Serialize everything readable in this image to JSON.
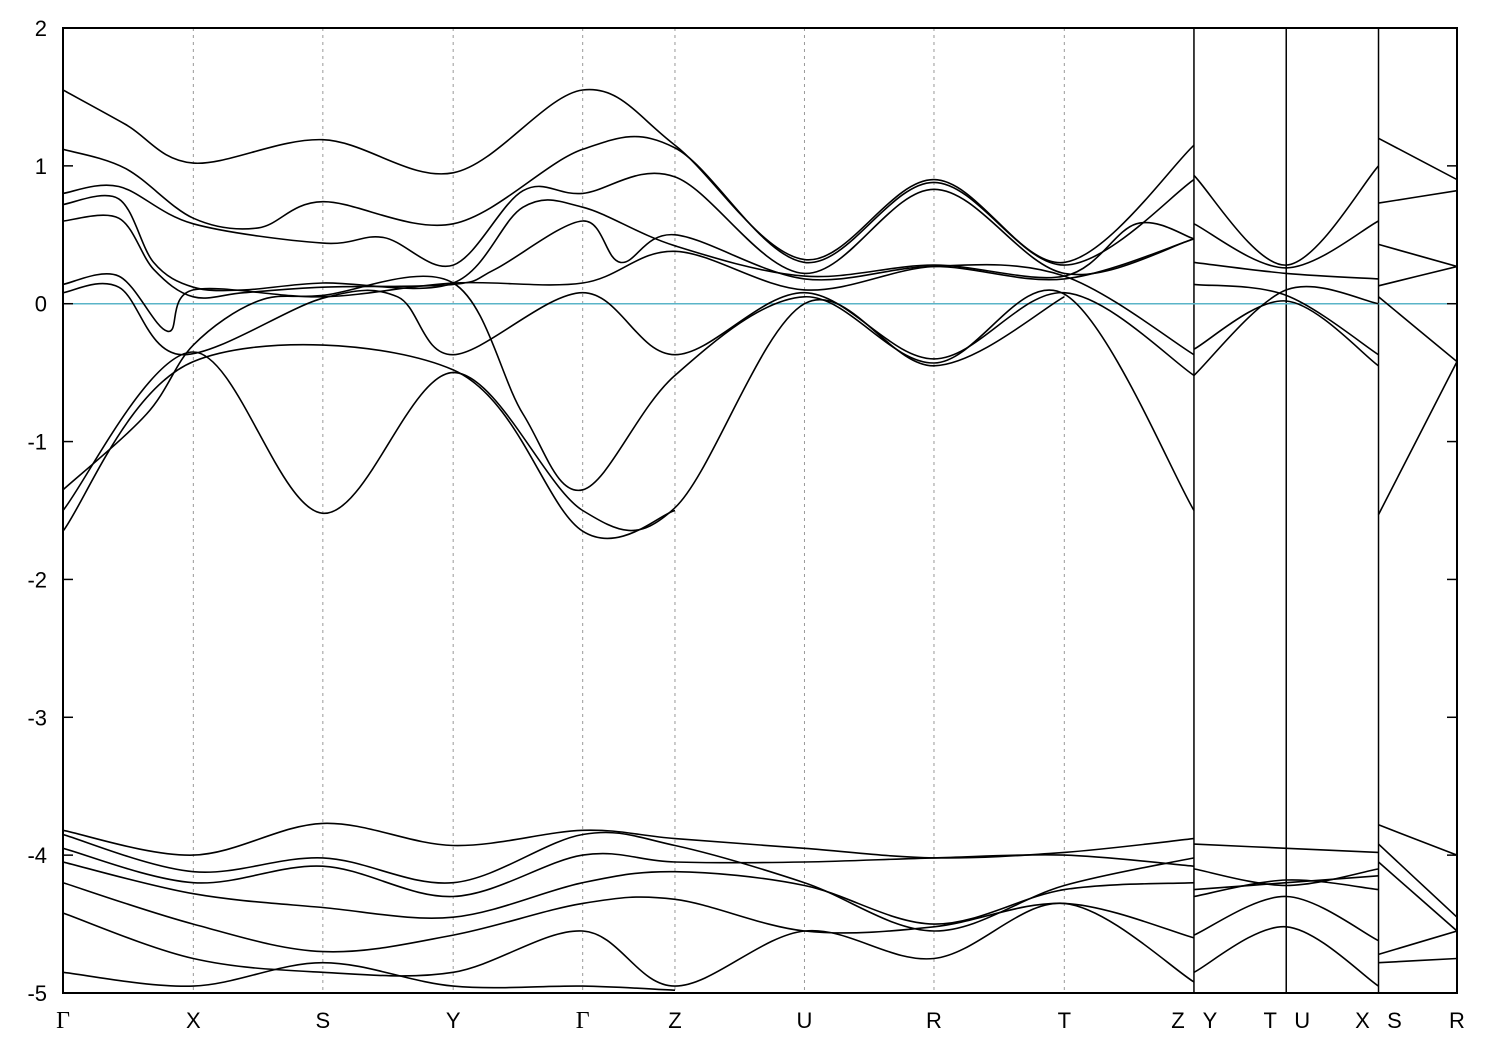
{
  "chart_data": {
    "type": "line",
    "title": "",
    "xlabel": "",
    "ylabel": "",
    "ylim": [
      -5,
      2
    ],
    "yticks": [
      -5,
      -4,
      -3,
      -2,
      -1,
      0,
      1,
      2
    ],
    "kpoints": [
      {
        "label": "Γ",
        "x": 0.0
      },
      {
        "label": "X",
        "x": 0.0935
      },
      {
        "label": "S",
        "x": 0.1864
      },
      {
        "label": "Y",
        "x": 0.2799
      },
      {
        "label": "Γ",
        "x": 0.3728
      },
      {
        "label": "Z",
        "x": 0.439
      },
      {
        "label": "U",
        "x": 0.5319
      },
      {
        "label": "R",
        "x": 0.6248
      },
      {
        "label": "T",
        "x": 0.7183
      },
      {
        "label": "Z",
        "x": 0.8113
      },
      {
        "label": "Y",
        "x": 0.8113
      },
      {
        "label": "T",
        "x": 0.8775
      },
      {
        "label": "U",
        "x": 0.8775
      },
      {
        "label": "X",
        "x": 0.9437
      },
      {
        "label": "S",
        "x": 0.9437
      },
      {
        "label": "R",
        "x": 1.0
      }
    ],
    "grid": "dashed vertical lines at high-symmetry points",
    "fermi_level": {
      "value": 0,
      "color": "#5ab4c8"
    },
    "line_color": "#000000",
    "series": [
      {
        "points": [
          [
            0.0,
            1.55
          ],
          [
            0.045,
            1.3
          ],
          [
            0.0935,
            1.02
          ],
          [
            0.1864,
            1.19
          ],
          [
            0.2799,
            0.95
          ],
          [
            0.3728,
            1.55
          ],
          [
            0.439,
            1.15
          ],
          [
            0.5319,
            0.32
          ],
          [
            0.6248,
            0.9
          ],
          [
            0.7183,
            0.3
          ],
          [
            0.8113,
            1.15
          ]
        ]
      },
      {
        "points": [
          [
            0.0,
            1.12
          ],
          [
            0.045,
            0.98
          ],
          [
            0.0935,
            0.62
          ],
          [
            0.14,
            0.55
          ],
          [
            0.1864,
            0.74
          ],
          [
            0.2799,
            0.58
          ],
          [
            0.3728,
            1.12
          ],
          [
            0.439,
            1.13
          ],
          [
            0.5319,
            0.3
          ],
          [
            0.6248,
            0.88
          ],
          [
            0.7183,
            0.28
          ],
          [
            0.8113,
            0.9
          ]
        ]
      },
      {
        "points": [
          [
            0.0,
            0.8
          ],
          [
            0.04,
            0.85
          ],
          [
            0.0935,
            0.58
          ],
          [
            0.1864,
            0.44
          ],
          [
            0.23,
            0.48
          ],
          [
            0.2799,
            0.28
          ],
          [
            0.33,
            0.82
          ],
          [
            0.3728,
            0.8
          ],
          [
            0.439,
            0.92
          ],
          [
            0.5319,
            0.22
          ],
          [
            0.6248,
            0.83
          ],
          [
            0.7183,
            0.22
          ],
          [
            0.8113,
            0.47
          ]
        ]
      },
      {
        "points": [
          [
            0.0,
            0.72
          ],
          [
            0.04,
            0.76
          ],
          [
            0.065,
            0.3
          ],
          [
            0.0935,
            0.12
          ],
          [
            0.13,
            0.1
          ],
          [
            0.1864,
            0.15
          ],
          [
            0.2799,
            0.15
          ],
          [
            0.33,
            0.7
          ],
          [
            0.3728,
            0.7
          ],
          [
            0.439,
            0.42
          ],
          [
            0.5319,
            0.2
          ],
          [
            0.6248,
            0.28
          ],
          [
            0.7183,
            0.2
          ],
          [
            0.77,
            0.58
          ],
          [
            0.8113,
            0.47
          ]
        ]
      },
      {
        "points": [
          [
            0.0,
            0.6
          ],
          [
            0.04,
            0.62
          ],
          [
            0.065,
            0.25
          ],
          [
            0.0935,
            0.05
          ],
          [
            0.13,
            0.08
          ],
          [
            0.1864,
            0.12
          ],
          [
            0.2799,
            0.14
          ],
          [
            0.31,
            0.25
          ],
          [
            0.3728,
            0.6
          ],
          [
            0.4,
            0.3
          ],
          [
            0.439,
            0.5
          ],
          [
            0.5319,
            0.18
          ],
          [
            0.6248,
            0.27
          ],
          [
            0.7183,
            0.18
          ],
          [
            0.8113,
            0.47
          ]
        ]
      },
      {
        "points": [
          [
            0.0,
            0.14
          ],
          [
            0.04,
            0.2
          ],
          [
            0.075,
            -0.2
          ],
          [
            0.0935,
            0.1
          ],
          [
            0.1864,
            0.05
          ],
          [
            0.2799,
            0.15
          ],
          [
            0.3728,
            0.15
          ],
          [
            0.439,
            0.38
          ],
          [
            0.5319,
            0.1
          ],
          [
            0.6248,
            0.27
          ],
          [
            0.7183,
            0.2
          ],
          [
            0.8113,
            -0.37
          ]
        ]
      },
      {
        "points": [
          [
            0.0,
            0.08
          ],
          [
            0.04,
            0.12
          ],
          [
            0.085,
            -0.37
          ],
          [
            0.1864,
            0.04
          ],
          [
            0.24,
            0.05
          ],
          [
            0.2799,
            -0.37
          ],
          [
            0.3728,
            0.08
          ],
          [
            0.439,
            -0.37
          ],
          [
            0.5319,
            0.08
          ],
          [
            0.6248,
            -0.4
          ],
          [
            0.7183,
            0.08
          ],
          [
            0.8113,
            -0.52
          ]
        ]
      },
      {
        "points": [
          [
            0.0,
            -1.35
          ],
          [
            0.06,
            -0.8
          ],
          [
            0.0935,
            -0.3
          ],
          [
            0.14,
            0.02
          ],
          [
            0.1864,
            0.06
          ],
          [
            0.2799,
            0.15
          ],
          [
            0.33,
            -0.8
          ],
          [
            0.3728,
            -1.35
          ],
          [
            0.439,
            -0.52
          ],
          [
            0.5319,
            0.05
          ],
          [
            0.6248,
            -0.43
          ],
          [
            0.7183,
            0.07
          ],
          [
            0.8113,
            -1.5
          ]
        ]
      },
      {
        "points": [
          [
            0.0,
            -1.5
          ],
          [
            0.0935,
            -0.35
          ],
          [
            0.1864,
            -1.52
          ],
          [
            0.2799,
            -0.5
          ],
          [
            0.3728,
            -1.5
          ],
          [
            0.439,
            -1.48
          ],
          [
            0.5319,
            0.0
          ],
          [
            0.6248,
            -0.45
          ],
          [
            0.7183,
            0.05
          ]
        ]
      },
      {
        "points": [
          [
            0.0,
            -1.65
          ],
          [
            0.0935,
            -0.42
          ],
          [
            0.2799,
            -0.48
          ],
          [
            0.3728,
            -1.65
          ],
          [
            0.439,
            -1.5
          ]
        ]
      },
      {
        "points": [
          [
            0.8113,
            0.93
          ],
          [
            0.8775,
            0.28
          ],
          [
            0.9437,
            1.0
          ]
        ]
      },
      {
        "points": [
          [
            0.8113,
            0.58
          ],
          [
            0.8775,
            0.26
          ],
          [
            0.9437,
            0.6
          ]
        ]
      },
      {
        "points": [
          [
            0.8113,
            0.3
          ],
          [
            0.8775,
            0.22
          ],
          [
            0.9437,
            0.18
          ]
        ]
      },
      {
        "points": [
          [
            0.8113,
            0.14
          ],
          [
            0.8775,
            0.06
          ],
          [
            0.9437,
            -0.37
          ]
        ]
      },
      {
        "points": [
          [
            0.8113,
            -0.33
          ],
          [
            0.8775,
            0.02
          ],
          [
            0.9437,
            -0.45
          ]
        ]
      },
      {
        "points": [
          [
            0.8113,
            -0.52
          ],
          [
            0.8775,
            0.1
          ],
          [
            0.9437,
            0.0
          ]
        ]
      },
      {
        "points": [
          [
            0.9437,
            1.2
          ],
          [
            1.0,
            0.9
          ]
        ]
      },
      {
        "points": [
          [
            0.9437,
            0.73
          ],
          [
            1.0,
            0.82
          ]
        ]
      },
      {
        "points": [
          [
            0.9437,
            0.43
          ],
          [
            1.0,
            0.27
          ]
        ]
      },
      {
        "points": [
          [
            0.9437,
            0.13
          ],
          [
            1.0,
            0.27
          ]
        ]
      },
      {
        "points": [
          [
            0.9437,
            0.05
          ],
          [
            1.0,
            -0.42
          ]
        ]
      },
      {
        "points": [
          [
            0.9437,
            -1.53
          ],
          [
            1.0,
            -0.42
          ]
        ]
      },
      {
        "points": [
          [
            0.0,
            -3.82
          ],
          [
            0.0935,
            -4.0
          ],
          [
            0.1864,
            -3.77
          ],
          [
            0.2799,
            -3.93
          ],
          [
            0.3728,
            -3.82
          ],
          [
            0.439,
            -3.88
          ],
          [
            0.5319,
            -3.95
          ],
          [
            0.6248,
            -4.02
          ],
          [
            0.7183,
            -3.98
          ],
          [
            0.8113,
            -3.88
          ]
        ]
      },
      {
        "points": [
          [
            0.0,
            -3.85
          ],
          [
            0.0935,
            -4.12
          ],
          [
            0.1864,
            -4.02
          ],
          [
            0.2799,
            -4.2
          ],
          [
            0.3728,
            -3.85
          ],
          [
            0.439,
            -3.93
          ],
          [
            0.5319,
            -4.2
          ],
          [
            0.6248,
            -4.55
          ],
          [
            0.7183,
            -4.22
          ],
          [
            0.8113,
            -4.02
          ]
        ]
      },
      {
        "points": [
          [
            0.0,
            -3.95
          ],
          [
            0.0935,
            -4.2
          ],
          [
            0.1864,
            -4.08
          ],
          [
            0.2799,
            -4.3
          ],
          [
            0.3728,
            -4.0
          ],
          [
            0.439,
            -4.05
          ],
          [
            0.5319,
            -4.05
          ],
          [
            0.6248,
            -4.02
          ],
          [
            0.7183,
            -4.0
          ],
          [
            0.8113,
            -4.08
          ]
        ]
      },
      {
        "points": [
          [
            0.0,
            -4.05
          ],
          [
            0.0935,
            -4.28
          ],
          [
            0.1864,
            -4.38
          ],
          [
            0.2799,
            -4.45
          ],
          [
            0.3728,
            -4.2
          ],
          [
            0.439,
            -4.12
          ],
          [
            0.5319,
            -4.22
          ],
          [
            0.6248,
            -4.5
          ],
          [
            0.7183,
            -4.25
          ],
          [
            0.8113,
            -4.2
          ]
        ]
      },
      {
        "points": [
          [
            0.0,
            -4.2
          ],
          [
            0.0935,
            -4.5
          ],
          [
            0.1864,
            -4.7
          ],
          [
            0.2799,
            -4.58
          ],
          [
            0.3728,
            -4.35
          ],
          [
            0.439,
            -4.32
          ],
          [
            0.5319,
            -4.55
          ],
          [
            0.6248,
            -4.52
          ],
          [
            0.7183,
            -4.35
          ],
          [
            0.8113,
            -4.6
          ]
        ]
      },
      {
        "points": [
          [
            0.0,
            -4.42
          ],
          [
            0.0935,
            -4.75
          ],
          [
            0.1864,
            -4.85
          ],
          [
            0.2799,
            -4.85
          ],
          [
            0.3728,
            -4.55
          ],
          [
            0.439,
            -4.95
          ],
          [
            0.5319,
            -4.55
          ],
          [
            0.6248,
            -4.75
          ],
          [
            0.7183,
            -4.35
          ],
          [
            0.8113,
            -4.92
          ]
        ]
      },
      {
        "points": [
          [
            0.0,
            -4.85
          ],
          [
            0.0935,
            -4.95
          ],
          [
            0.1864,
            -4.78
          ],
          [
            0.2799,
            -4.95
          ],
          [
            0.3728,
            -4.95
          ],
          [
            0.439,
            -4.98
          ]
        ]
      },
      {
        "points": [
          [
            0.8113,
            -3.92
          ],
          [
            0.8775,
            -3.95
          ],
          [
            0.9437,
            -3.98
          ]
        ]
      },
      {
        "points": [
          [
            0.8113,
            -4.1
          ],
          [
            0.8775,
            -4.22
          ],
          [
            0.9437,
            -4.1
          ]
        ]
      },
      {
        "points": [
          [
            0.8113,
            -4.25
          ],
          [
            0.8775,
            -4.2
          ],
          [
            0.9437,
            -4.15
          ]
        ]
      },
      {
        "points": [
          [
            0.8113,
            -4.3
          ],
          [
            0.8775,
            -4.18
          ],
          [
            0.9437,
            -4.25
          ]
        ]
      },
      {
        "points": [
          [
            0.8113,
            -4.58
          ],
          [
            0.8775,
            -4.3
          ],
          [
            0.9437,
            -4.62
          ]
        ]
      },
      {
        "points": [
          [
            0.8113,
            -4.85
          ],
          [
            0.8775,
            -4.52
          ],
          [
            0.9437,
            -4.95
          ]
        ]
      },
      {
        "points": [
          [
            0.9437,
            -3.78
          ],
          [
            1.0,
            -4.0
          ]
        ]
      },
      {
        "points": [
          [
            0.9437,
            -3.92
          ],
          [
            1.0,
            -4.45
          ]
        ]
      },
      {
        "points": [
          [
            0.9437,
            -4.05
          ],
          [
            1.0,
            -4.55
          ]
        ]
      },
      {
        "points": [
          [
            0.9437,
            -4.72
          ],
          [
            1.0,
            -4.55
          ]
        ]
      },
      {
        "points": [
          [
            0.9437,
            -4.78
          ],
          [
            1.0,
            -4.75
          ]
        ]
      }
    ]
  }
}
